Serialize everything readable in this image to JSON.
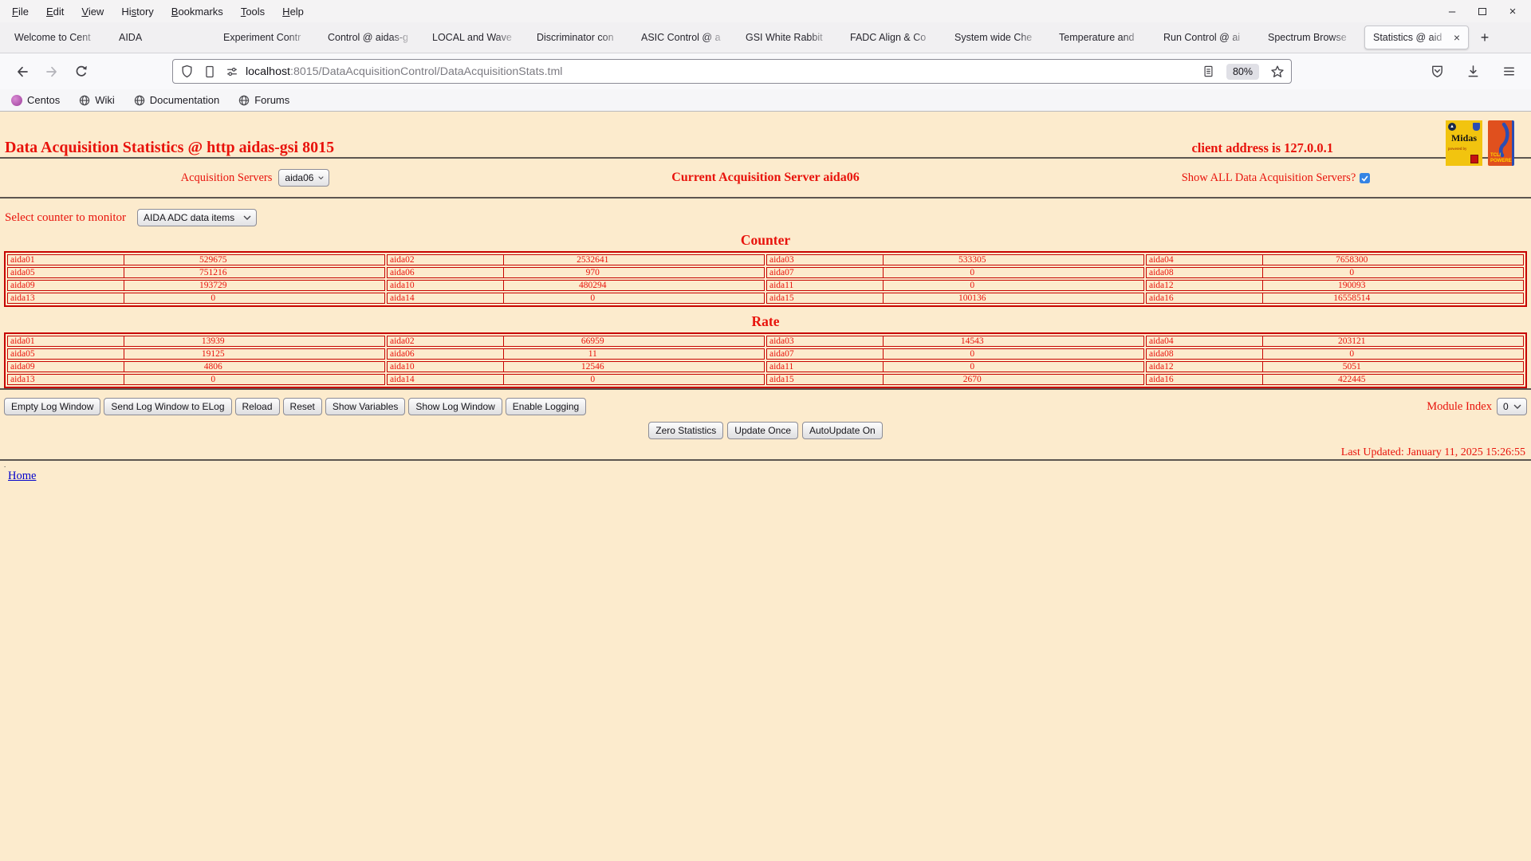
{
  "colors": {
    "page_bg": "#fcebcd",
    "red": "#e8130c",
    "table_border": "#c70400",
    "link_blue": "#0000cc",
    "checkbox_blue": "#3584e4"
  },
  "window": {
    "menu_items": [
      {
        "label": "File",
        "u": 0
      },
      {
        "label": "Edit",
        "u": 0
      },
      {
        "label": "View",
        "u": 0
      },
      {
        "label": "History",
        "u": 2
      },
      {
        "label": "Bookmarks",
        "u": 0
      },
      {
        "label": "Tools",
        "u": 0
      },
      {
        "label": "Help",
        "u": 0
      }
    ],
    "controls": {
      "minimize_glyph": "–",
      "close_glyph": "×"
    }
  },
  "tabs": {
    "items": [
      {
        "label": "Welcome to Cent"
      },
      {
        "label": "AIDA"
      },
      {
        "label": "Experiment Contr"
      },
      {
        "label": "Control @ aidas-g"
      },
      {
        "label": "LOCAL and Wave"
      },
      {
        "label": "Discriminator con"
      },
      {
        "label": "ASIC Control @ a"
      },
      {
        "label": "GSI White Rabbit"
      },
      {
        "label": "FADC Align & Co"
      },
      {
        "label": "System wide Che"
      },
      {
        "label": "Temperature and"
      },
      {
        "label": "Run Control @ ai"
      },
      {
        "label": "Spectrum Browse"
      },
      {
        "label": "Statistics @ aid",
        "active": true
      }
    ],
    "close_glyph": "×",
    "new_tab_label": "+"
  },
  "navbar": {
    "url_host": "localhost",
    "url_rest": ":8015/DataAcquisitionControl/DataAcquisitionStats.tml",
    "zoom_level": "80%"
  },
  "bookmarks": {
    "items": [
      {
        "label": "Centos",
        "icon": "centos-icon"
      },
      {
        "label": "Wiki",
        "icon": "globe-icon"
      },
      {
        "label": "Documentation",
        "icon": "globe-icon"
      },
      {
        "label": "Forums",
        "icon": "globe-icon"
      }
    ]
  },
  "page": {
    "title": "Data Acquisition Statistics @ http aidas-gsi 8015",
    "client_address": "client address is 127.0.0.1",
    "logos": {
      "midas_text": "Midas",
      "midas_sub": "powered by",
      "tcl_line1": "TCL/",
      "tcl_line2": "POWERED"
    },
    "acquisition_servers_label": "Acquisition Servers",
    "acquisition_server_selected": "aida06",
    "current_server_text": "Current Acquisition Server aida06",
    "show_all_label": "Show ALL Data Acquisition Servers?",
    "show_all_checked": true,
    "select_counter_label": "Select counter to monitor",
    "counter_selected": "AIDA ADC data items",
    "counter_heading": "Counter",
    "rate_heading": "Rate",
    "log_buttons": [
      "Empty Log Window",
      "Send Log Window to ELog",
      "Reload",
      "Reset",
      "Show Variables",
      "Show Log Window",
      "Enable Logging"
    ],
    "module_index_label": "Module Index",
    "module_index_selected": "0",
    "update_buttons": [
      "Zero Statistics",
      "Update Once",
      "AutoUpdate On"
    ],
    "last_updated": "Last Updated: January 11, 2025 15:26:55",
    "footer_dot": ".",
    "home_link": "Home"
  },
  "counter_table": {
    "rows": [
      [
        [
          "aida01",
          "529675"
        ],
        [
          "aida02",
          "2532641"
        ],
        [
          "aida03",
          "533305"
        ],
        [
          "aida04",
          "7658300"
        ]
      ],
      [
        [
          "aida05",
          "751216"
        ],
        [
          "aida06",
          "970"
        ],
        [
          "aida07",
          "0"
        ],
        [
          "aida08",
          "0"
        ]
      ],
      [
        [
          "aida09",
          "193729"
        ],
        [
          "aida10",
          "480294"
        ],
        [
          "aida11",
          "0"
        ],
        [
          "aida12",
          "190093"
        ]
      ],
      [
        [
          "aida13",
          "0"
        ],
        [
          "aida14",
          "0"
        ],
        [
          "aida15",
          "100136"
        ],
        [
          "aida16",
          "16558514"
        ]
      ]
    ]
  },
  "rate_table": {
    "rows": [
      [
        [
          "aida01",
          "13939"
        ],
        [
          "aida02",
          "66959"
        ],
        [
          "aida03",
          "14543"
        ],
        [
          "aida04",
          "203121"
        ]
      ],
      [
        [
          "aida05",
          "19125"
        ],
        [
          "aida06",
          "11"
        ],
        [
          "aida07",
          "0"
        ],
        [
          "aida08",
          "0"
        ]
      ],
      [
        [
          "aida09",
          "4806"
        ],
        [
          "aida10",
          "12546"
        ],
        [
          "aida11",
          "0"
        ],
        [
          "aida12",
          "5051"
        ]
      ],
      [
        [
          "aida13",
          "0"
        ],
        [
          "aida14",
          "0"
        ],
        [
          "aida15",
          "2670"
        ],
        [
          "aida16",
          "422445"
        ]
      ]
    ]
  }
}
